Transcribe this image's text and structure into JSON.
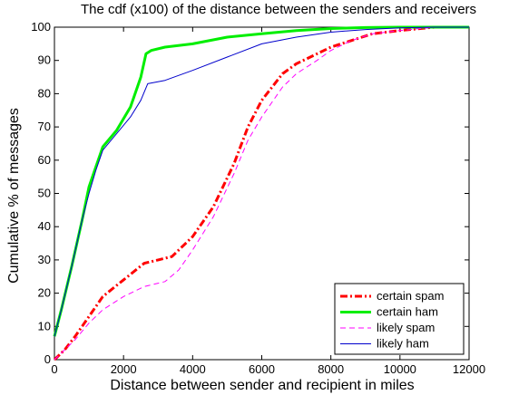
{
  "chart_data": {
    "type": "line",
    "title": "The cdf (x100) of the distance between the senders and receivers",
    "xlabel": "Distance between sender and recipient in miles",
    "ylabel": "Cumulative % of messages",
    "xlim": [
      0,
      12000
    ],
    "ylim": [
      0,
      100
    ],
    "xticks": [
      0,
      2000,
      4000,
      6000,
      8000,
      10000,
      12000
    ],
    "yticks": [
      0,
      10,
      20,
      30,
      40,
      50,
      60,
      70,
      80,
      90,
      100
    ],
    "grid": false,
    "legend_position": "bottom-right",
    "series": [
      {
        "name": "certain spam",
        "color": "#ff0000",
        "dash": "dashdot",
        "x": [
          0,
          300,
          600,
          1000,
          1400,
          2000,
          2600,
          3000,
          3400,
          4000,
          4600,
          5200,
          5600,
          6000,
          6600,
          7000,
          7600,
          8000,
          8600,
          9200,
          10000,
          11000,
          12000
        ],
        "y": [
          0,
          3,
          7,
          13,
          19,
          24,
          29,
          30,
          31,
          37,
          46,
          59,
          70,
          78,
          86,
          89,
          92,
          94,
          96,
          98,
          99,
          100,
          100
        ]
      },
      {
        "name": "certain ham",
        "color": "#00ee00",
        "dash": "solid",
        "x": [
          0,
          200,
          500,
          800,
          1000,
          1200,
          1400,
          1800,
          2200,
          2500,
          2650,
          2800,
          3200,
          4000,
          5000,
          6000,
          7000,
          8000,
          9000,
          10000,
          12000
        ],
        "y": [
          7,
          15,
          28,
          42,
          52,
          58,
          64,
          69,
          76,
          85,
          92,
          93,
          94,
          95,
          97,
          98,
          99,
          99.6,
          99.9,
          100,
          100
        ]
      },
      {
        "name": "likely spam",
        "color": "#ff00ff",
        "dash": "dashed",
        "x": [
          0,
          300,
          600,
          1000,
          1400,
          2000,
          2600,
          3200,
          3600,
          4000,
          4600,
          5200,
          5600,
          6000,
          6600,
          7000,
          7600,
          8000,
          8600,
          9200,
          10000,
          11000,
          12000
        ],
        "y": [
          0,
          3,
          6,
          11,
          15,
          19,
          22,
          23.5,
          27,
          33,
          43,
          56,
          66,
          73,
          82,
          86,
          90,
          93,
          96,
          98,
          99,
          100,
          100
        ]
      },
      {
        "name": "likely ham",
        "color": "#0000cc",
        "dash": "solid",
        "x": [
          0,
          200,
          500,
          800,
          1000,
          1200,
          1400,
          1800,
          2200,
          2500,
          2700,
          3200,
          4000,
          5000,
          6000,
          7000,
          8000,
          9000,
          10000,
          11000,
          12000
        ],
        "y": [
          7,
          15,
          28,
          42,
          50,
          57,
          63,
          68,
          73,
          78,
          83,
          84,
          87,
          91,
          95,
          97,
          98.5,
          99.3,
          99.8,
          100,
          100
        ]
      }
    ]
  }
}
